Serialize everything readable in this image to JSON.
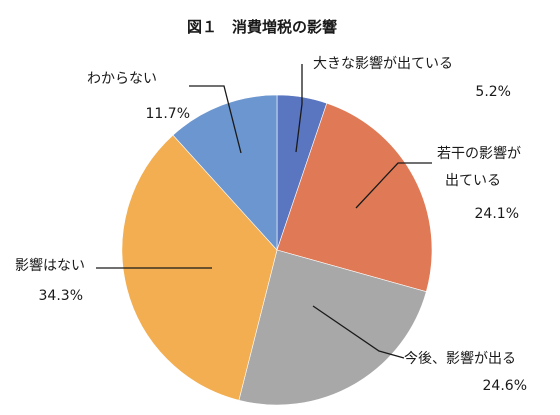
{
  "chart_data": {
    "type": "pie",
    "title": "図１　消費増税の影響",
    "start_angle_deg": 0,
    "direction": "clockwise",
    "slices": [
      {
        "label": "大きな影響が出ている",
        "label_lines": [
          "大きな影響が出ている"
        ],
        "value": 5.2,
        "value_text": "5.2%",
        "color": "#5b76c0"
      },
      {
        "label": "若干の影響が出ている",
        "label_lines": [
          "若干の影響が",
          "出ている"
        ],
        "value": 24.1,
        "value_text": "24.1%",
        "color": "#e07a56"
      },
      {
        "label": "今後、影響が出る",
        "label_lines": [
          "今後、影響が出る"
        ],
        "value": 24.6,
        "value_text": "24.6%",
        "color": "#a8a8a8"
      },
      {
        "label": "影響はない",
        "label_lines": [
          "影響はない"
        ],
        "value": 34.3,
        "value_text": "34.3%",
        "color": "#f2ae50"
      },
      {
        "label": "わからない",
        "label_lines": [
          "わからない"
        ],
        "value": 11.7,
        "value_text": "11.7%",
        "color": "#6b96cf"
      }
    ]
  }
}
